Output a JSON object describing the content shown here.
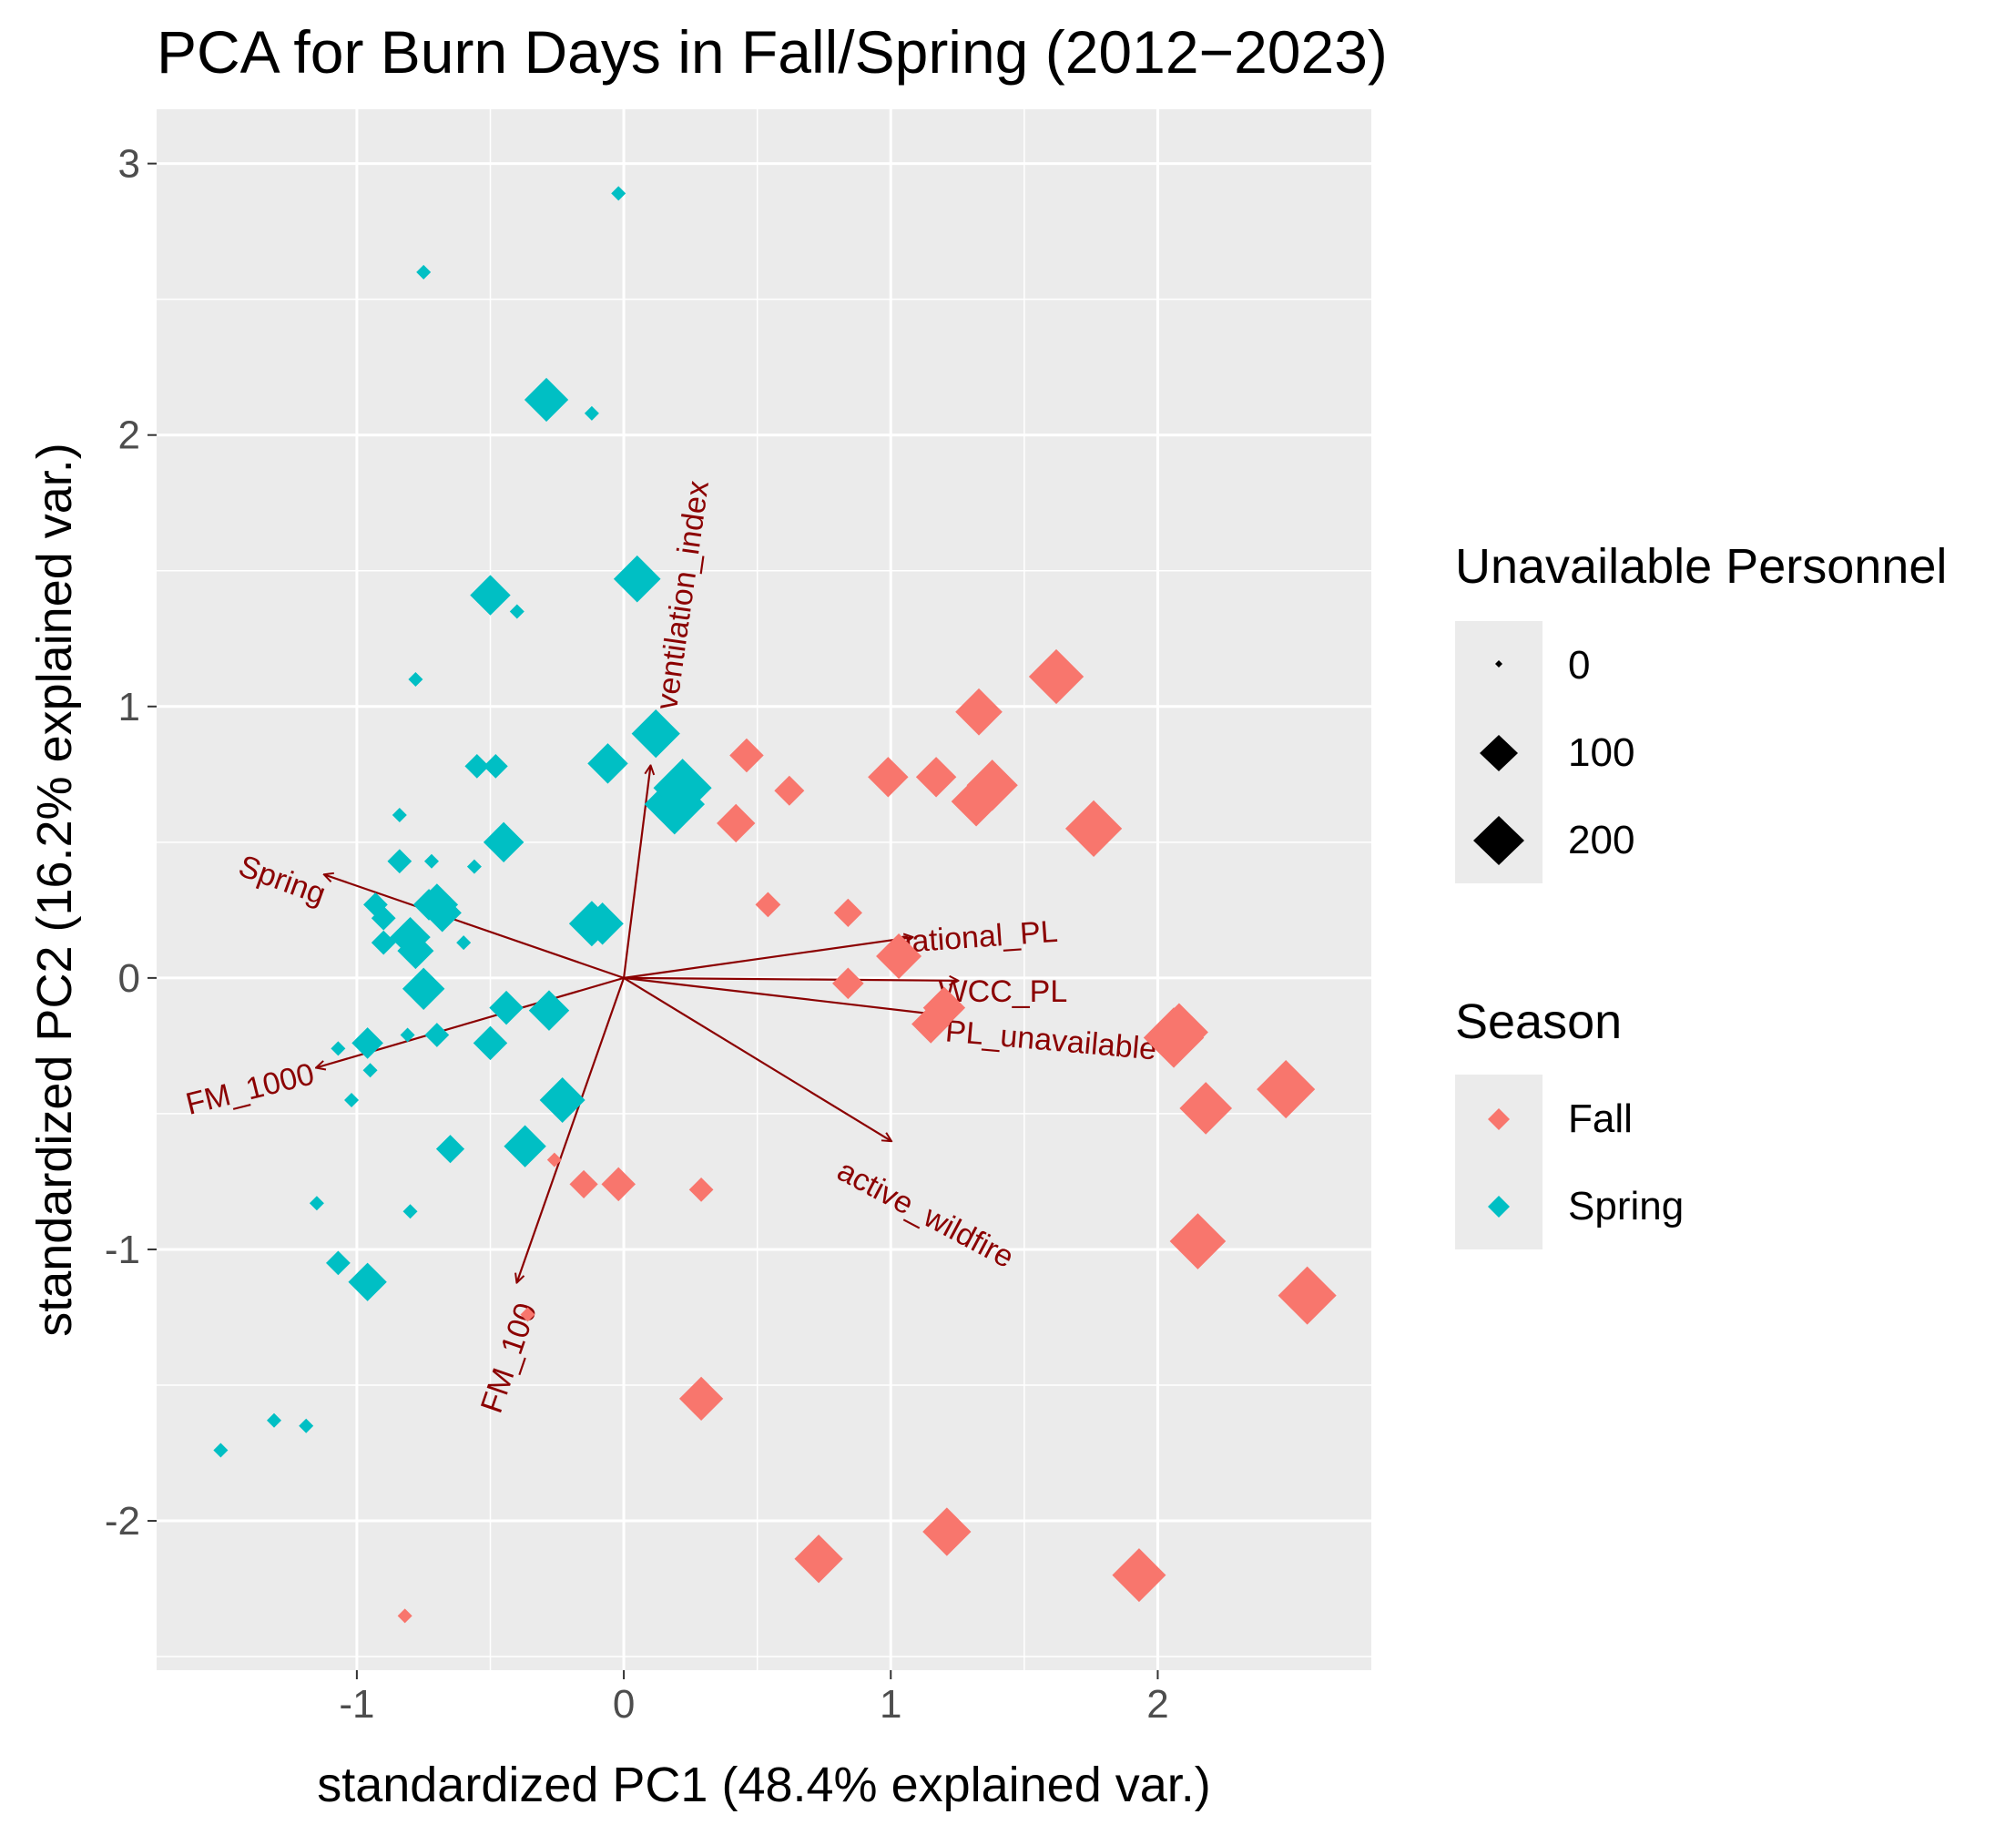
{
  "chart_data": {
    "type": "scatter",
    "title": "PCA for Burn Days in Fall/Spring (2012−2023)",
    "xlabel": "standardized PC1 (48.4% explained var.)",
    "ylabel": "standardized PC2 (16.2% explained var.)",
    "xlim": [
      -1.75,
      2.8
    ],
    "ylim": [
      -2.55,
      3.2
    ],
    "x_ticks": [
      -1,
      0,
      1,
      2
    ],
    "y_ticks": [
      -2,
      -1,
      0,
      1,
      2,
      3
    ],
    "x_tick_labels": [
      "-1",
      "0",
      "1",
      "2"
    ],
    "y_tick_labels": [
      "-2",
      "-1",
      "0",
      "1",
      "2",
      "3"
    ],
    "colors": {
      "panel": "#ebebeb",
      "grid": "#ffffff",
      "arrow": "#8b0000",
      "legend_key_bg": "#ebebeb"
    },
    "legends": {
      "size": {
        "title": "Unavailable Personnel",
        "labels": [
          "0",
          "100",
          "200"
        ],
        "values": [
          0,
          100,
          200
        ]
      },
      "color": {
        "title": "Season",
        "labels": [
          "Fall",
          "Spring"
        ],
        "colors": [
          "#f8766d",
          "#00bfc4"
        ]
      }
    },
    "series": [
      {
        "name": "Fall",
        "color": "#f8766d",
        "points": [
          [
            1.62,
            1.11,
            170
          ],
          [
            1.33,
            0.98,
            110
          ],
          [
            1.76,
            0.55,
            185
          ],
          [
            1.38,
            0.71,
            140
          ],
          [
            1.32,
            0.65,
            130
          ],
          [
            0.99,
            0.74,
            70
          ],
          [
            1.17,
            0.74,
            70
          ],
          [
            0.46,
            0.82,
            40
          ],
          [
            0.62,
            0.69,
            25
          ],
          [
            0.42,
            0.57,
            60
          ],
          [
            0.54,
            0.27,
            12
          ],
          [
            0.84,
            0.24,
            20
          ],
          [
            1.03,
            0.08,
            100
          ],
          [
            0.84,
            -0.02,
            30
          ],
          [
            1.2,
            -0.11,
            80
          ],
          [
            1.15,
            -0.17,
            60
          ],
          [
            2.06,
            -0.22,
            220
          ],
          [
            2.08,
            -0.2,
            200
          ],
          [
            2.48,
            -0.41,
            200
          ],
          [
            2.18,
            -0.48,
            150
          ],
          [
            2.15,
            -0.97,
            180
          ],
          [
            2.56,
            -1.17,
            200
          ],
          [
            -0.26,
            -0.67,
            0
          ],
          [
            -0.15,
            -0.76,
            20
          ],
          [
            -0.02,
            -0.76,
            40
          ],
          [
            0.29,
            -0.78,
            10
          ],
          [
            -0.36,
            -1.24,
            0
          ],
          [
            0.29,
            -1.55,
            90
          ],
          [
            0.73,
            -2.14,
            120
          ],
          [
            1.21,
            -2.04,
            120
          ],
          [
            1.93,
            -2.2,
            160
          ],
          [
            -0.82,
            -2.35,
            0
          ]
        ]
      },
      {
        "name": "Spring",
        "color": "#00bfc4",
        "points": [
          [
            -0.02,
            2.89,
            0
          ],
          [
            -0.75,
            2.6,
            0
          ],
          [
            -0.29,
            2.13,
            90
          ],
          [
            -0.12,
            2.08,
            0
          ],
          [
            0.05,
            1.47,
            110
          ],
          [
            -0.5,
            1.41,
            70
          ],
          [
            -0.4,
            1.35,
            0
          ],
          [
            -0.78,
            1.1,
            0
          ],
          [
            0.12,
            0.9,
            120
          ],
          [
            -0.06,
            0.79,
            70
          ],
          [
            0.19,
            0.64,
            220
          ],
          [
            0.22,
            0.7,
            200
          ],
          [
            -0.55,
            0.78,
            10
          ],
          [
            -0.48,
            0.78,
            10
          ],
          [
            -0.45,
            0.5,
            70
          ],
          [
            -0.84,
            0.6,
            0
          ],
          [
            -0.84,
            0.43,
            10
          ],
          [
            -0.72,
            0.43,
            0
          ],
          [
            -0.56,
            0.41,
            0
          ],
          [
            -0.73,
            0.27,
            30
          ],
          [
            -0.7,
            0.27,
            80
          ],
          [
            -0.68,
            0.24,
            60
          ],
          [
            -0.93,
            0.27,
            10
          ],
          [
            -0.9,
            0.22,
            10
          ],
          [
            -0.8,
            0.15,
            70
          ],
          [
            -0.78,
            0.1,
            50
          ],
          [
            -0.6,
            0.13,
            0
          ],
          [
            -0.9,
            0.13,
            10
          ],
          [
            -0.75,
            -0.04,
            80
          ],
          [
            -0.12,
            0.2,
            100
          ],
          [
            -0.08,
            0.2,
            80
          ],
          [
            -0.44,
            -0.11,
            40
          ],
          [
            -0.28,
            -0.12,
            70
          ],
          [
            -0.81,
            -0.21,
            0
          ],
          [
            -0.7,
            -0.21,
            10
          ],
          [
            -0.96,
            -0.24,
            30
          ],
          [
            -1.07,
            -0.26,
            0
          ],
          [
            -0.5,
            -0.24,
            40
          ],
          [
            -0.95,
            -0.34,
            0
          ],
          [
            -1.02,
            -0.45,
            0
          ],
          [
            -0.23,
            -0.45,
            100
          ],
          [
            -0.65,
            -0.63,
            20
          ],
          [
            -0.37,
            -0.62,
            80
          ],
          [
            -0.8,
            -0.86,
            0
          ],
          [
            -1.15,
            -0.83,
            0
          ],
          [
            -1.07,
            -1.05,
            10
          ],
          [
            -0.96,
            -1.12,
            60
          ],
          [
            -1.31,
            -1.63,
            0
          ],
          [
            -1.19,
            -1.65,
            0
          ],
          [
            -1.51,
            -1.74,
            0
          ]
        ]
      }
    ],
    "loadings": [
      {
        "label": "ventilation_index",
        "x": 0.1,
        "y": 0.78,
        "label_x": 0.22,
        "label_y": 1.41,
        "angle": -82
      },
      {
        "label": "Spring",
        "x": -1.12,
        "y": 0.38,
        "label_x": -1.28,
        "label_y": 0.36,
        "angle": 20
      },
      {
        "label": "national_PL",
        "x": 1.08,
        "y": 0.15,
        "label_x": 1.32,
        "label_y": 0.15,
        "angle": -4
      },
      {
        "label": "WCC_PL",
        "x": 1.25,
        "y": -0.01,
        "label_x": 1.42,
        "label_y": -0.05,
        "angle": 0
      },
      {
        "label": "PL_unavailable",
        "x": 1.22,
        "y": -0.14,
        "label_x": 1.6,
        "label_y": -0.23,
        "angle": 5
      },
      {
        "label": "FM_1000",
        "x": -1.15,
        "y": -0.33,
        "label_x": -1.4,
        "label_y": -0.41,
        "angle": -14
      },
      {
        "label": "active_wildfire",
        "x": 1.0,
        "y": -0.6,
        "label_x": 1.13,
        "label_y": -0.87,
        "angle": 28
      },
      {
        "label": "FM_100",
        "x": -0.4,
        "y": -1.12,
        "label_x": -0.43,
        "label_y": -1.4,
        "angle": -71
      }
    ]
  }
}
